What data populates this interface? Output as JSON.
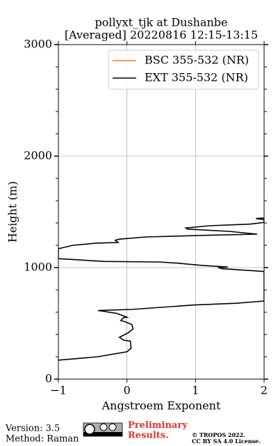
{
  "chart_data": {
    "type": "line",
    "title": "pollyxt_tjk at Dushanbe",
    "subtitle": "[Averaged] 20220816 12:15-13:15",
    "x_label": "Angstroem Exponent",
    "y_label": "Height (m)",
    "xlim": [
      -1,
      2
    ],
    "xticks": [
      {
        "value": -1,
        "label": "−1"
      },
      0,
      1,
      2
    ],
    "ylim": [
      0,
      3000
    ],
    "yticks": [
      0,
      1000,
      2000,
      3000
    ],
    "y_minor_ticks": [
      200,
      400,
      600,
      800,
      1200,
      1400,
      1600,
      1800,
      2200,
      2400,
      2600,
      2800
    ],
    "grid": true,
    "legend": "upper right",
    "y": [
      170,
      200,
      245,
      275,
      340,
      350,
      375,
      415,
      450,
      490,
      515,
      525,
      550,
      555,
      590,
      615,
      625,
      665,
      680,
      700,
      965,
      990,
      1000,
      1005,
      1020,
      1040,
      1050,
      1055,
      1080,
      1170,
      1175,
      1200,
      1220,
      1225,
      1245,
      1255,
      1275,
      1290,
      1300,
      1325,
      1345,
      1355,
      1375,
      1390,
      1405,
      1430,
      1440,
      1445
    ],
    "series": [
      {
        "name": "BSC 355-532 (NR)",
        "color": "#ff7f0e",
        "values": [
          null,
          null,
          null,
          null,
          null,
          null,
          null,
          null,
          null,
          null,
          null,
          null,
          null,
          null,
          null,
          null,
          null,
          null,
          null,
          null,
          null,
          null,
          null,
          null,
          null,
          null,
          null,
          null,
          null,
          null,
          null,
          null,
          null,
          null,
          null,
          null,
          null,
          null,
          null,
          null,
          null,
          null,
          null,
          null,
          null,
          null,
          null,
          null
        ]
      },
      {
        "name": "EXT 355-532 (NR)",
        "color": "#000000",
        "values": [
          -1.0,
          -0.43,
          0.0,
          0.06,
          0.05,
          -0.05,
          -0.11,
          0.02,
          0.09,
          0.07,
          -0.03,
          -0.09,
          -0.05,
          0.0,
          -0.15,
          -0.42,
          0.07,
          0.99,
          1.59,
          2.0,
          2.0,
          1.39,
          1.33,
          1.47,
          1.09,
          0.73,
          0.48,
          -0.33,
          -1.0,
          -1.0,
          -0.96,
          -0.79,
          -0.43,
          -0.13,
          -0.17,
          -0.11,
          0.28,
          1.19,
          1.9,
          1.49,
          0.89,
          0.86,
          1.19,
          1.8,
          2.0,
          2.0,
          1.88,
          2.0
        ]
      }
    ]
  },
  "footer": {
    "version": "Version: 3.5",
    "method": "Method: Raman",
    "notice": "Preliminary Results.",
    "copyright": "© TROPOS 2022.",
    "license": "CC BY SA 4.0 License."
  }
}
